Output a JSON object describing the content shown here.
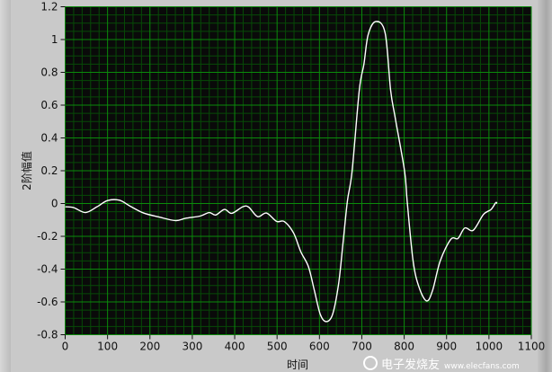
{
  "chart_data": {
    "type": "line",
    "title": "",
    "xlabel": "时间",
    "ylabel": "2阶幅值",
    "xlim": [
      0,
      1100
    ],
    "ylim": [
      -0.8,
      1.2
    ],
    "x_ticks": [
      "0",
      "100",
      "200",
      "300",
      "400",
      "500",
      "600",
      "700",
      "800",
      "900",
      "1000",
      "1100"
    ],
    "y_ticks": [
      "-0.8",
      "-0.6",
      "-0.4",
      "-0.2",
      "0",
      "0.2",
      "0.4",
      "0.6",
      "0.8",
      "1",
      "1.2"
    ],
    "grid": true,
    "x_major_step": 100,
    "x_minor_step": 20,
    "y_major_step": 0.2,
    "y_minor_step": 0.05,
    "colors": {
      "plot_background": "#0a0a0a",
      "major_grid": "#0b8a0b",
      "minor_grid": "#074a07",
      "line": "#ffffff"
    },
    "series": [
      {
        "x": [
          0,
          20,
          48,
          75,
          100,
          128,
          154,
          185,
          221,
          260,
          284,
          319,
          340,
          355,
          376,
          393,
          419,
          433,
          454,
          475,
          499,
          517,
          539,
          556,
          574,
          588,
          602,
          616,
          631,
          645,
          655,
          666,
          677,
          694,
          705,
          715,
          733,
          755,
          768,
          779,
          801,
          807,
          821,
          835,
          853,
          867,
          885,
          910,
          927,
          943,
          963,
          987,
          1005,
          1016,
          1019
        ],
        "y": [
          -0.02,
          -0.025,
          -0.055,
          -0.02,
          0.018,
          0.02,
          -0.017,
          -0.058,
          -0.082,
          -0.104,
          -0.09,
          -0.076,
          -0.055,
          -0.07,
          -0.036,
          -0.06,
          -0.02,
          -0.022,
          -0.08,
          -0.058,
          -0.109,
          -0.11,
          -0.18,
          -0.294,
          -0.385,
          -0.53,
          -0.676,
          -0.72,
          -0.676,
          -0.494,
          -0.257,
          0.015,
          0.196,
          0.69,
          0.85,
          1.03,
          1.11,
          1.04,
          0.69,
          0.52,
          0.196,
          0.015,
          -0.35,
          -0.51,
          -0.594,
          -0.53,
          -0.35,
          -0.218,
          -0.213,
          -0.149,
          -0.163,
          -0.067,
          -0.036,
          0.005,
          0.0
        ]
      }
    ]
  },
  "watermark": {
    "text": "电子发烧友",
    "url_text": "www.elecfans.com"
  }
}
